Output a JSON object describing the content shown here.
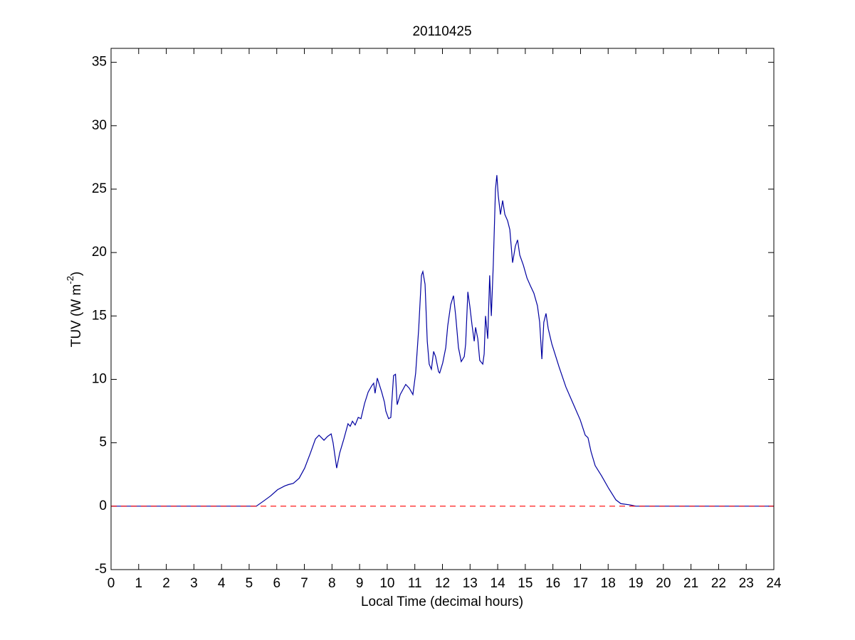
{
  "chart_data": {
    "type": "line",
    "title": "20110425",
    "xlabel": "Local Time (decimal hours)",
    "ylabel": [
      "TUV (W m",
      "-2",
      ")"
    ],
    "xlim": [
      0,
      24
    ],
    "xticks": [
      0,
      1,
      2,
      3,
      4,
      5,
      6,
      7,
      8,
      9,
      10,
      11,
      12,
      13,
      14,
      15,
      16,
      17,
      18,
      19,
      20,
      21,
      22,
      23,
      24
    ],
    "ylim": [
      -5,
      36.1
    ],
    "yticks": [
      -5,
      0,
      5,
      10,
      15,
      20,
      25,
      30,
      35
    ],
    "box": true,
    "grid": false,
    "series": [
      {
        "color": "#0000a0",
        "dash": false,
        "x": [
          0,
          5.26,
          5.52,
          5.77,
          6.03,
          6.29,
          6.42,
          6.6,
          6.81,
          7.01,
          7.22,
          7.4,
          7.53,
          7.71,
          7.84,
          7.97,
          8.04,
          8.17,
          8.28,
          8.43,
          8.58,
          8.66,
          8.74,
          8.84,
          8.95,
          9.05,
          9.18,
          9.31,
          9.44,
          9.51,
          9.56,
          9.64,
          9.8,
          9.9,
          9.95,
          10.05,
          10.13,
          10.23,
          10.3,
          10.36,
          10.47,
          10.67,
          10.8,
          10.93,
          11.03,
          11.14,
          11.24,
          11.29,
          11.37,
          11.45,
          11.52,
          11.6,
          11.68,
          11.75,
          11.86,
          11.9,
          12.01,
          12.12,
          12.19,
          12.3,
          12.4,
          12.48,
          12.58,
          12.68,
          12.79,
          12.84,
          12.92,
          12.99,
          13.07,
          13.15,
          13.2,
          13.28,
          13.35,
          13.46,
          13.51,
          13.56,
          13.64,
          13.71,
          13.77,
          13.84,
          13.92,
          13.97,
          14.02,
          14.1,
          14.18,
          14.26,
          14.36,
          14.44,
          14.54,
          14.64,
          14.72,
          14.8,
          14.93,
          15.06,
          15.18,
          15.31,
          15.44,
          15.52,
          15.6,
          15.67,
          15.75,
          15.83,
          15.96,
          16.22,
          16.47,
          16.73,
          16.99,
          17.17,
          17.27,
          17.38,
          17.53,
          17.76,
          18.02,
          18.28,
          18.46,
          18.8,
          19.0,
          24
        ],
        "values": [
          0,
          0,
          0.4,
          0.8,
          1.3,
          1.6,
          1.7,
          1.8,
          2.2,
          3.0,
          4.2,
          5.3,
          5.6,
          5.2,
          5.5,
          5.7,
          5.0,
          3.0,
          4.2,
          5.3,
          6.5,
          6.3,
          6.7,
          6.4,
          7.0,
          6.9,
          8.1,
          9.0,
          9.5,
          9.7,
          8.9,
          10.1,
          9.0,
          8.2,
          7.5,
          6.9,
          7.0,
          10.3,
          10.4,
          8.0,
          8.8,
          9.6,
          9.3,
          8.8,
          10.5,
          14.0,
          18.2,
          18.5,
          17.5,
          13.0,
          11.2,
          10.8,
          12.2,
          11.8,
          10.6,
          10.5,
          11.3,
          12.5,
          14.2,
          15.9,
          16.6,
          15.0,
          12.5,
          11.4,
          11.8,
          12.8,
          16.9,
          15.8,
          14.3,
          13.0,
          14.1,
          13.2,
          11.5,
          11.2,
          12.0,
          15.0,
          13.2,
          18.2,
          15.0,
          19.0,
          25.0,
          26.1,
          24.5,
          23.0,
          24.1,
          23.0,
          22.5,
          21.8,
          19.2,
          20.5,
          21.0,
          19.8,
          19.0,
          18.0,
          17.4,
          16.8,
          15.8,
          14.5,
          11.6,
          14.5,
          15.2,
          14.0,
          12.8,
          11.0,
          9.4,
          8.1,
          6.8,
          5.6,
          5.4,
          4.3,
          3.2,
          2.4,
          1.4,
          0.5,
          0.2,
          0.1,
          0,
          0
        ]
      },
      {
        "color": "#ff0000",
        "dash": true,
        "x": [
          0,
          24
        ],
        "values": [
          0,
          0
        ]
      }
    ]
  }
}
